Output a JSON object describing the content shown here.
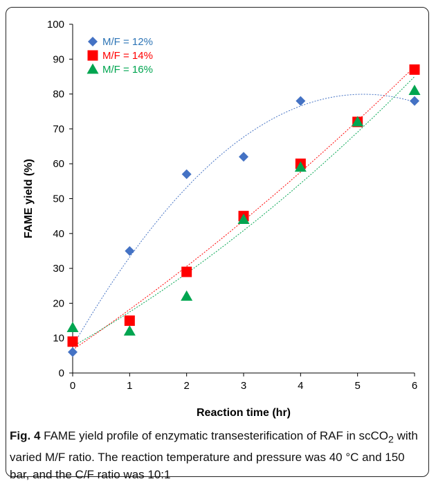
{
  "chart_data": {
    "type": "scatter",
    "xlabel": "Reaction time (hr)",
    "ylabel": "FAME yield (%)",
    "xlim": [
      0,
      6
    ],
    "ylim": [
      0,
      100
    ],
    "xticks": [
      0,
      1,
      2,
      3,
      4,
      5,
      6
    ],
    "yticks": [
      0,
      10,
      20,
      30,
      40,
      50,
      60,
      70,
      80,
      90,
      100
    ],
    "grid": false,
    "legend_position": "top-left",
    "trendlines": "dotted polynomial",
    "series": [
      {
        "name": "M/F = 12%",
        "marker": "diamond",
        "color": "#4472C4",
        "label_color": "#2E75B6",
        "x": [
          0,
          1,
          2,
          3,
          4,
          6
        ],
        "values": [
          6,
          35,
          57,
          62,
          78,
          78
        ]
      },
      {
        "name": "M/F = 14%",
        "marker": "square",
        "color": "#FF0000",
        "label_color": "#FF0000",
        "x": [
          0,
          1,
          2,
          3,
          4,
          5,
          6
        ],
        "values": [
          9,
          15,
          29,
          45,
          60,
          72,
          87
        ]
      },
      {
        "name": "M/F = 16%",
        "marker": "triangle",
        "color": "#00A550",
        "label_color": "#00A550",
        "x": [
          0,
          1,
          2,
          3,
          4,
          5,
          6
        ],
        "values": [
          13,
          12,
          22,
          44,
          59,
          72,
          81
        ]
      }
    ]
  },
  "caption": {
    "label": "Fig. 4",
    "text_before_sub": " FAME yield profile of enzymatic transesterification of RAF in scCO",
    "subscript": "2",
    "text_after_sub": " with varied M/F ratio. The reaction temperature and pressure was 40 °C and 150 bar, and the C/F ratio was 10:1"
  }
}
